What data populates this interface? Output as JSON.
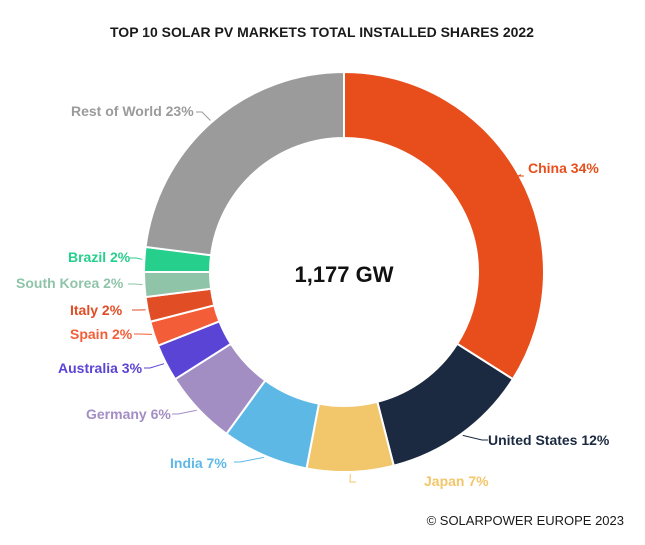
{
  "chart_data": {
    "type": "pie",
    "variant": "donut",
    "title": "TOP 10 SOLAR PV MARKETS TOTAL INSTALLED SHARES 2022",
    "center_label": "1,177 GW",
    "source": "© SOLARPOWER EUROPE 2023",
    "slices": [
      {
        "name": "China",
        "value": 34,
        "label": "China 34%",
        "color": "#e84e1b"
      },
      {
        "name": "United States",
        "value": 12,
        "label": "United States 12%",
        "color": "#1b2a40"
      },
      {
        "name": "Japan",
        "value": 7,
        "label": "Japan 7%",
        "color": "#f2c66b"
      },
      {
        "name": "India",
        "value": 7,
        "label": "India 7%",
        "color": "#5db8e6"
      },
      {
        "name": "Germany",
        "value": 6,
        "label": "Germany 6%",
        "color": "#a38ec4"
      },
      {
        "name": "Australia",
        "value": 3,
        "label": "Australia 3%",
        "color": "#5a44d6"
      },
      {
        "name": "Spain",
        "value": 2,
        "label": "Spain 2%",
        "color": "#f35d37"
      },
      {
        "name": "Italy",
        "value": 2,
        "label": "Italy 2%",
        "color": "#e14d24"
      },
      {
        "name": "South Korea",
        "value": 2,
        "label": "South Korea 2%",
        "color": "#8fc4a8"
      },
      {
        "name": "Brazil",
        "value": 2,
        "label": "Brazil 2%",
        "color": "#27cf8c"
      },
      {
        "name": "Rest of World",
        "value": 23,
        "label": "Rest of World 23%",
        "color": "#9b9b9b"
      }
    ]
  }
}
